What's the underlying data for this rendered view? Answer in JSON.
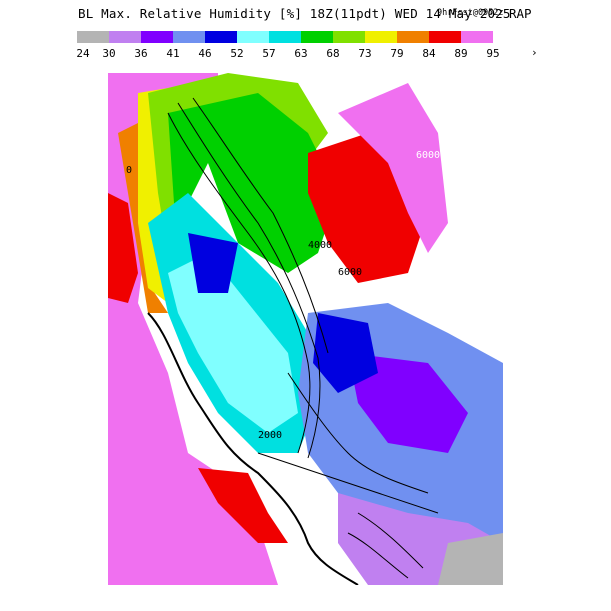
{
  "header": {
    "title": "BL Max. Relative Humidity [%] 18Z(11pdt) WED 14 May 2025",
    "forecast_info": "9hrFcst@0952z",
    "model": "RAP"
  },
  "legend": {
    "ticks": [
      "24",
      "30",
      "36",
      "41",
      "46",
      "52",
      "57",
      "63",
      "68",
      "73",
      "79",
      "84",
      "89",
      "95"
    ],
    "colors": [
      "#b4b4b4",
      "#c080f0",
      "#8000ff",
      "#7090f0",
      "#0000e0",
      "#80ffff",
      "#00e0e0",
      "#00d000",
      "#80e000",
      "#f0f000",
      "#f08000",
      "#f00000",
      "#f070f0"
    ],
    "overflow_arrow": "›"
  },
  "map": {
    "contour_labels": [
      "6000",
      "4000",
      "2000",
      "0"
    ]
  }
}
